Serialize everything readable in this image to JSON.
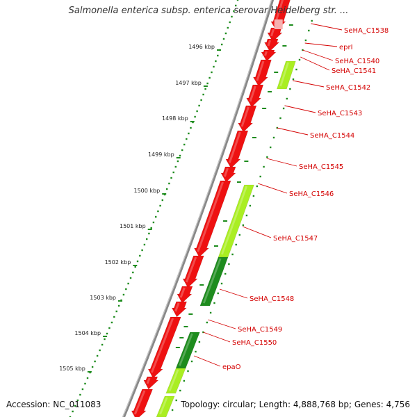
{
  "title": "Salmonella enterica subsp. enterica serovar Heidelberg str. ...",
  "footer": {
    "accession": "Accession: NC_011083",
    "summary": "Topology: circular; Length: 4,888,768 bp; Genes: 4,756"
  },
  "colors": {
    "forward_gene": "#ee1111",
    "reverse_gene_light": "#aaee22",
    "reverse_gene_dark": "#1e8c1e",
    "backbone": "#888888",
    "label": "#d40000",
    "tick": "#1e8c1e"
  },
  "ticks": [
    "1496 kbp",
    "1497 kbp",
    "1498 kbp",
    "1499 kbp",
    "1500 kbp",
    "1501 kbp",
    "1502 kbp",
    "1503 kbp",
    "1504 kbp",
    "1505 kbp"
  ],
  "gene_labels": [
    "SeHA_C1538",
    "eprI",
    "SeHA_C1540",
    "SeHA_C1541",
    "SeHA_C1542",
    "SeHA_C1543",
    "SeHA_C1544",
    "SeHA_C1545",
    "SeHA_C1546",
    "SeHA_C1547",
    "SeHA_C1548",
    "SeHA_C1549",
    "SeHA_C1550",
    "epaO"
  ]
}
